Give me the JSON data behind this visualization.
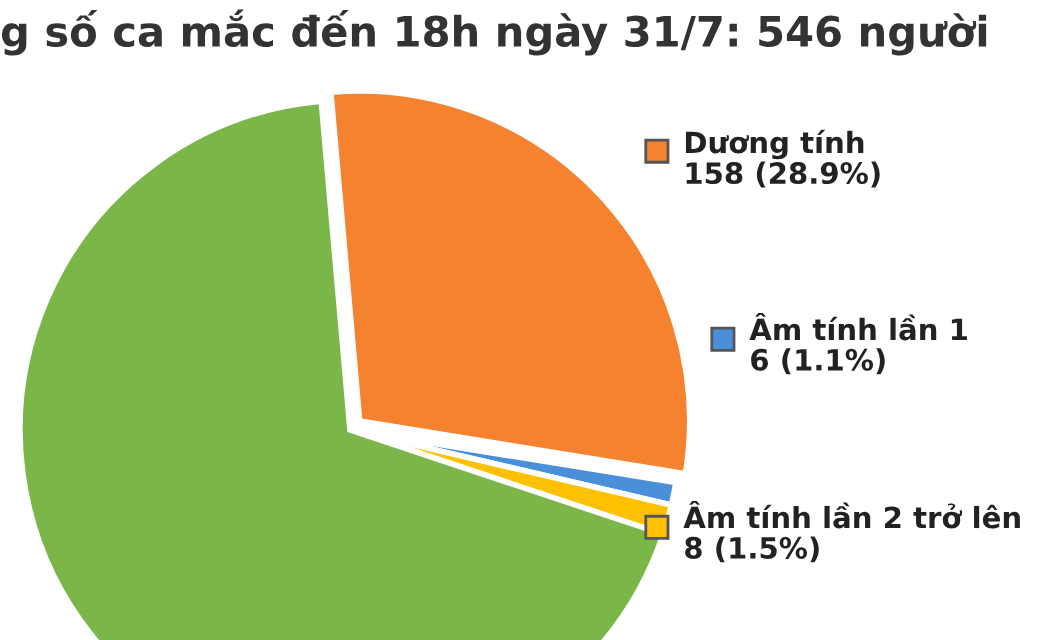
{
  "chart_data": {
    "type": "pie",
    "title": "g số ca mắc đến 18h ngày 31/7: 546 người",
    "categories": [
      "Dương tính",
      "Âm tính lần 1",
      "Âm tính lần 2 trở lên",
      null
    ],
    "values": [
      158,
      6,
      8,
      374
    ],
    "value_labels": [
      "158 (28.9%)",
      "6 (1.1%)",
      "8 (1.5%)",
      null
    ],
    "colors": [
      "#f5822f",
      "#4a90d9",
      "#ffc000",
      "#7ab648"
    ],
    "legend": "right"
  }
}
